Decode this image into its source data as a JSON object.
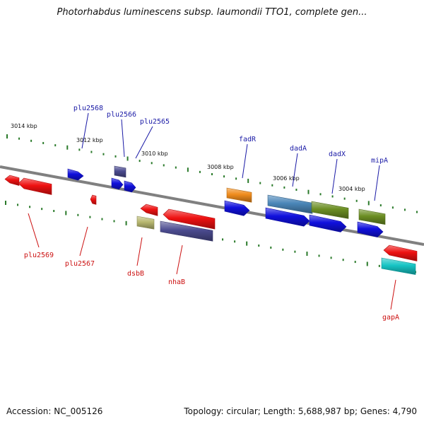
{
  "title": "Photorhabdus luminescens subsp. laumondii TTO1, complete gen...",
  "footer": {
    "accession": "Accession: NC_005126",
    "stats": "Topology: circular; Length: 5,688,987 bp; Genes: 4,790"
  },
  "colors": {
    "backbone": "#808080",
    "tick_top": "#2a7a2a",
    "tick_bottom": "#2a7a2a",
    "label_forward": "#1a1aa6",
    "label_reverse": "#cc1111"
  },
  "scale_labels": [
    {
      "text": "3014 kbp"
    },
    {
      "text": "3012 kbp"
    },
    {
      "text": "3010 kbp"
    },
    {
      "text": "3008 kbp"
    },
    {
      "text": "3006 kbp"
    },
    {
      "text": "3004 kbp"
    }
  ],
  "gene_labels": [
    {
      "text": "plu2568",
      "strand": "forward"
    },
    {
      "text": "plu2566",
      "strand": "forward"
    },
    {
      "text": "plu2565",
      "strand": "forward"
    },
    {
      "text": "fadR",
      "strand": "forward"
    },
    {
      "text": "dadA",
      "strand": "forward"
    },
    {
      "text": "dadX",
      "strand": "forward"
    },
    {
      "text": "mipA",
      "strand": "forward"
    },
    {
      "text": "plu2569",
      "strand": "reverse"
    },
    {
      "text": "plu2567",
      "strand": "reverse"
    },
    {
      "text": "dsbB",
      "strand": "reverse"
    },
    {
      "text": "nhaB",
      "strand": "reverse"
    },
    {
      "text": "gapA",
      "strand": "reverse"
    }
  ],
  "features": [
    {
      "name": "plu2569-left-cds",
      "color": "#ee1111"
    },
    {
      "name": "plu2569-cds",
      "color": "#ee1111"
    },
    {
      "name": "plu2568-cds",
      "color": "#1010dd"
    },
    {
      "name": "plu2567-cds",
      "color": "#ee1111"
    },
    {
      "name": "plu2566-gene",
      "color": "#4b4b8f"
    },
    {
      "name": "plu2566-cds",
      "color": "#1010dd"
    },
    {
      "name": "plu2565-cds",
      "color": "#1010dd"
    },
    {
      "name": "dsbB-cds",
      "color": "#ee1111"
    },
    {
      "name": "dsbB-gene",
      "color": "#b8b870"
    },
    {
      "name": "nhaB-cds",
      "color": "#ee1111"
    },
    {
      "name": "nhaB-gene",
      "color": "#4b4b8f"
    },
    {
      "name": "fadR-gene",
      "color": "#f08c1c"
    },
    {
      "name": "fadR-cds",
      "color": "#1010dd"
    },
    {
      "name": "dadA-gene",
      "color": "#4a86b8"
    },
    {
      "name": "dadA-cds",
      "color": "#1010dd"
    },
    {
      "name": "dadX-gene",
      "color": "#6b8e23"
    },
    {
      "name": "dadX-cds",
      "color": "#1010dd"
    },
    {
      "name": "mipA-gene",
      "color": "#6b8e23"
    },
    {
      "name": "mipA-cds",
      "color": "#1010dd"
    },
    {
      "name": "gapA-cds",
      "color": "#ee1111"
    },
    {
      "name": "gapA-gene",
      "color": "#16c4c4"
    }
  ]
}
